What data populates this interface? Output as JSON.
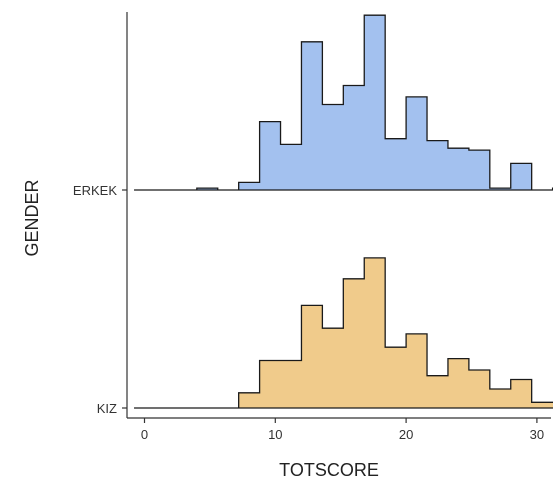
{
  "chart_data": {
    "type": "ridgeline-histogram",
    "xlabel": "TOTSCORE",
    "ylabel": "GENDER",
    "xlim": [
      -1,
      31
    ],
    "x_ticks": [
      0,
      10,
      20,
      30
    ],
    "bin_width": 1.6,
    "bin_start": -0.8,
    "series": [
      {
        "name": "ERKEK",
        "color": "#a3c1ef",
        "values": [
          0,
          0,
          0,
          0.01,
          0,
          0.04,
          0.36,
          0.24,
          0.78,
          0.45,
          0.55,
          0.92,
          0.27,
          0.49,
          0.26,
          0.22,
          0.21,
          0.01,
          0.14,
          0,
          0.01,
          0
        ]
      },
      {
        "name": "KIZ",
        "color": "#f0cb8b",
        "values": [
          0,
          0,
          0,
          0,
          0,
          0.08,
          0.25,
          0.25,
          0.54,
          0.42,
          0.68,
          0.79,
          0.32,
          0.39,
          0.17,
          0.26,
          0.2,
          0.1,
          0.15,
          0.03,
          0.03,
          0
        ]
      }
    ],
    "axis_ranges": {
      "x": [
        -1,
        31
      ]
    },
    "grid": false,
    "legend": "none"
  }
}
